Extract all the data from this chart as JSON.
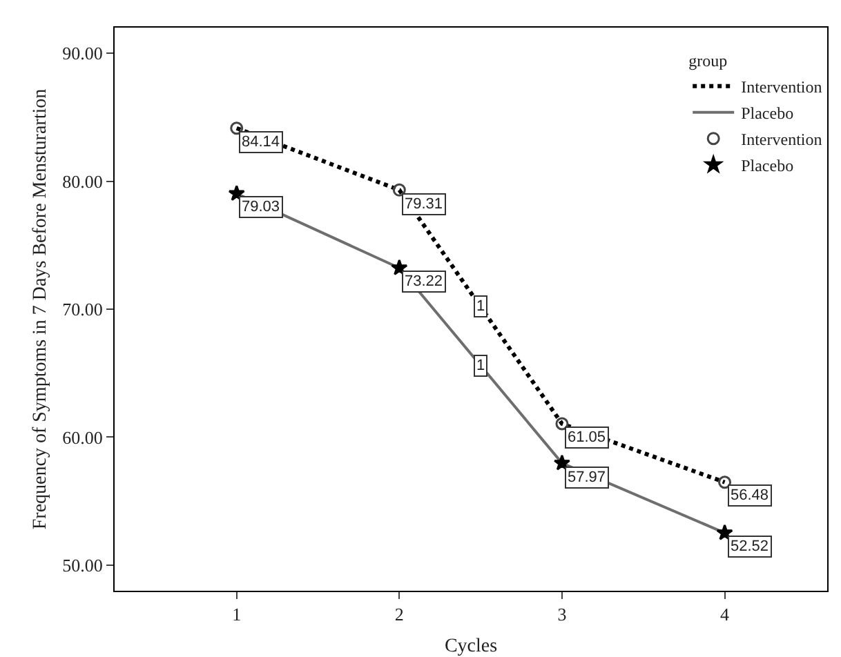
{
  "chart_data": {
    "type": "line",
    "xlabel": "Cycles",
    "ylabel": "Frequency of Symptoms in 7 Days Before Mensturartion",
    "legend_title": "group",
    "x": [
      1,
      2,
      3,
      4
    ],
    "xlim": [
      0.25,
      4.63
    ],
    "xticks": [
      1,
      2,
      3,
      4
    ],
    "ylim": [
      48,
      92
    ],
    "yticks": [
      {
        "value": 50,
        "label": "50.00"
      },
      {
        "value": 60,
        "label": "60.00"
      },
      {
        "value": 70,
        "label": "70.00"
      },
      {
        "value": 80,
        "label": "80.00"
      },
      {
        "value": 90,
        "label": "90.00"
      }
    ],
    "grid": false,
    "legend": "top right",
    "series": [
      {
        "name": "Intervention",
        "line_style": "dotted",
        "marker": "none",
        "color": "#000000",
        "values": [
          84.14,
          79.31,
          61.05,
          56.48
        ]
      },
      {
        "name": "Placebo",
        "line_style": "solid",
        "marker": "none",
        "color": "#6e6e6e",
        "values": [
          79.03,
          73.22,
          57.97,
          52.52
        ]
      },
      {
        "name": "Intervention",
        "type": "scatter",
        "marker": "circle",
        "color": "#444444",
        "values": [
          84.14,
          79.31,
          61.05,
          56.48
        ],
        "value_labels": [
          "84.14",
          "79.31",
          "61.05",
          "56.48"
        ]
      },
      {
        "name": "Placebo",
        "type": "scatter",
        "marker": "star",
        "color": "#000000",
        "values": [
          79.03,
          73.22,
          57.97,
          52.52
        ],
        "value_labels": [
          "79.03",
          "73.22",
          "57.97",
          "52.52"
        ]
      }
    ],
    "annotations": [
      {
        "text": "1",
        "x": 2.5,
        "y": 70.18
      },
      {
        "text": "1",
        "x": 2.5,
        "y": 65.6
      }
    ]
  }
}
